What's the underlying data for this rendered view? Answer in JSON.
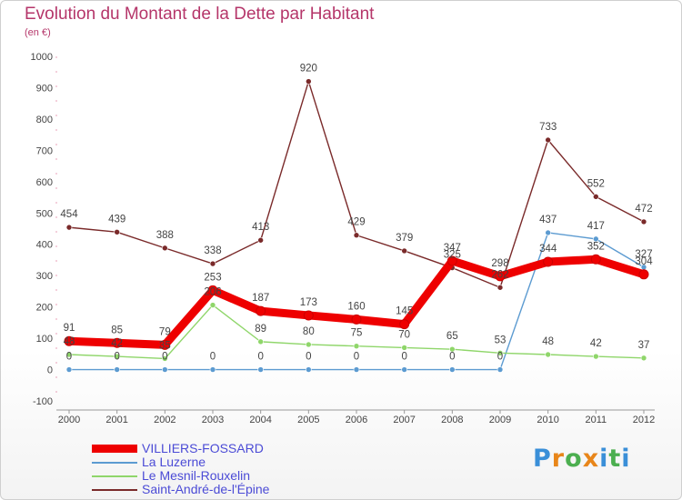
{
  "header": {
    "title": "Evolution du Montant de la Dette par Habitant",
    "subtitle": "(en €)"
  },
  "logo": {
    "text": "Proxiti",
    "colors": [
      "#3a8fd8",
      "#e8861a",
      "#4caf50",
      "#e8861a",
      "#3a8fd8",
      "#4caf50",
      "#3a8fd8"
    ]
  },
  "chart_data": {
    "type": "line",
    "title": "Evolution du Montant de la Dette par Habitant",
    "subtitle": "(en €)",
    "xlabel": "",
    "ylabel": "",
    "ylim": [
      -100,
      1000
    ],
    "yticks": [
      -100,
      0,
      100,
      200,
      300,
      400,
      500,
      600,
      700,
      800,
      900,
      1000
    ],
    "grid": false,
    "legend_position": "bottom-left",
    "categories": [
      "2000",
      "2001",
      "2002",
      "2003",
      "2004",
      "2005",
      "2006",
      "2007",
      "2008",
      "2009",
      "2010",
      "2011",
      "2012"
    ],
    "series": [
      {
        "name": "Saint-André-de-l'Épine",
        "color": "#7a2a2a",
        "values": [
          454,
          439,
          388,
          338,
          413,
          920,
          429,
          379,
          325,
          262,
          733,
          552,
          472
        ],
        "labels": [
          "454",
          "439",
          "388",
          "338",
          "413",
          "920",
          "429",
          "379",
          "325",
          "262",
          "733",
          "552",
          "472"
        ]
      },
      {
        "name": "La Luzerne",
        "color": "#5c9bd1",
        "values": [
          0,
          0,
          0,
          0,
          0,
          0,
          0,
          0,
          0,
          0,
          437,
          417,
          327
        ],
        "labels": [
          "0",
          "0",
          "0",
          "0",
          "0",
          "0",
          "0",
          "0",
          "0",
          "0",
          "437",
          "417",
          "327"
        ]
      },
      {
        "name": "Le Mesnil-Rouxelin",
        "color": "#8fd66a",
        "values": [
          48,
          42,
          35,
          206,
          89,
          80,
          75,
          70,
          65,
          53,
          48,
          42,
          37
        ],
        "labels": [
          "48",
          "42",
          "35",
          "206",
          "89",
          "80",
          "75",
          "70",
          "65",
          "53",
          "48",
          "42",
          "37"
        ]
      },
      {
        "name": "VILLIERS-FOSSARD",
        "color": "#ee0000",
        "values": [
          91,
          85,
          79,
          253,
          187,
          173,
          160,
          145,
          347,
          298,
          344,
          352,
          304
        ],
        "labels": [
          "91",
          "85",
          "79",
          "253",
          "187",
          "173",
          "160",
          "145",
          "347",
          "298",
          "344",
          "352",
          "304"
        ]
      }
    ]
  },
  "legend": [
    {
      "label": "VILLIERS-FOSSARD",
      "color": "#ee0000",
      "thick": true
    },
    {
      "label": "La Luzerne",
      "color": "#5c9bd1",
      "thick": false
    },
    {
      "label": "Le Mesnil-Rouxelin",
      "color": "#8fd66a",
      "thick": false
    },
    {
      "label": "Saint-André-de-l'Épine",
      "color": "#7a2a2a",
      "thick": false
    }
  ]
}
